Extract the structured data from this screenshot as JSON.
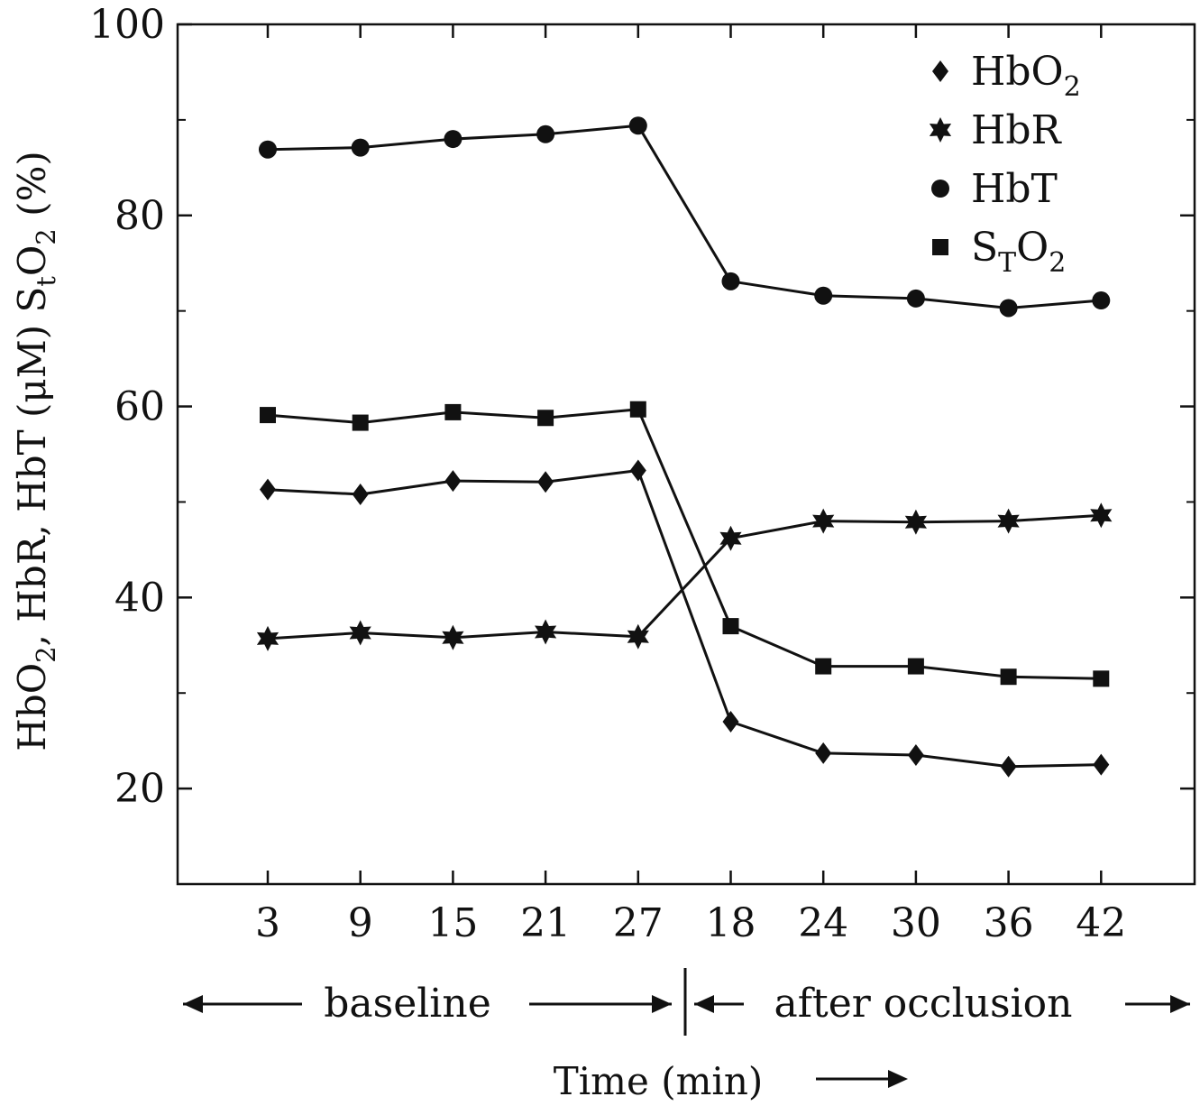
{
  "chart_data": {
    "type": "line",
    "xlabel": "Time (min)",
    "ylabel_parts": [
      "HbO",
      "2",
      ", HbR, HbT (μM) S",
      "t",
      "O",
      "2",
      " (%)"
    ],
    "ylim": [
      10,
      100
    ],
    "yticks": [
      20,
      40,
      60,
      80,
      100
    ],
    "yticks_minor": [
      30,
      50,
      70,
      90
    ],
    "categories": [
      "3",
      "9",
      "15",
      "21",
      "27",
      "18",
      "24",
      "30",
      "36",
      "42"
    ],
    "regions": [
      {
        "label": "baseline",
        "start_index": 0,
        "end_index": 4
      },
      {
        "label": "after occlusion",
        "start_index": 5,
        "end_index": 9
      }
    ],
    "series": [
      {
        "name": "HbO2",
        "label_parts": [
          "HbO",
          "2"
        ],
        "marker": "diamond",
        "values": [
          51.3,
          50.8,
          52.2,
          52.1,
          53.3,
          27.0,
          23.7,
          23.5,
          22.3,
          22.5
        ]
      },
      {
        "name": "HbR",
        "label_parts": [
          "HbR"
        ],
        "marker": "star",
        "values": [
          35.7,
          36.3,
          35.8,
          36.4,
          35.9,
          46.2,
          48.0,
          47.9,
          48.0,
          48.6
        ]
      },
      {
        "name": "HbT",
        "label_parts": [
          "HbT"
        ],
        "marker": "circle",
        "values": [
          86.9,
          87.1,
          88.0,
          88.5,
          89.4,
          73.1,
          71.6,
          71.3,
          70.3,
          71.1
        ]
      },
      {
        "name": "STO2",
        "label_parts": [
          "S",
          "T",
          "O",
          "2"
        ],
        "marker": "square",
        "values": [
          59.1,
          58.3,
          59.4,
          58.8,
          59.7,
          37.0,
          32.8,
          32.8,
          31.7,
          31.5
        ]
      }
    ],
    "legend_position": "top-right",
    "grid": false,
    "color": "#111111"
  }
}
